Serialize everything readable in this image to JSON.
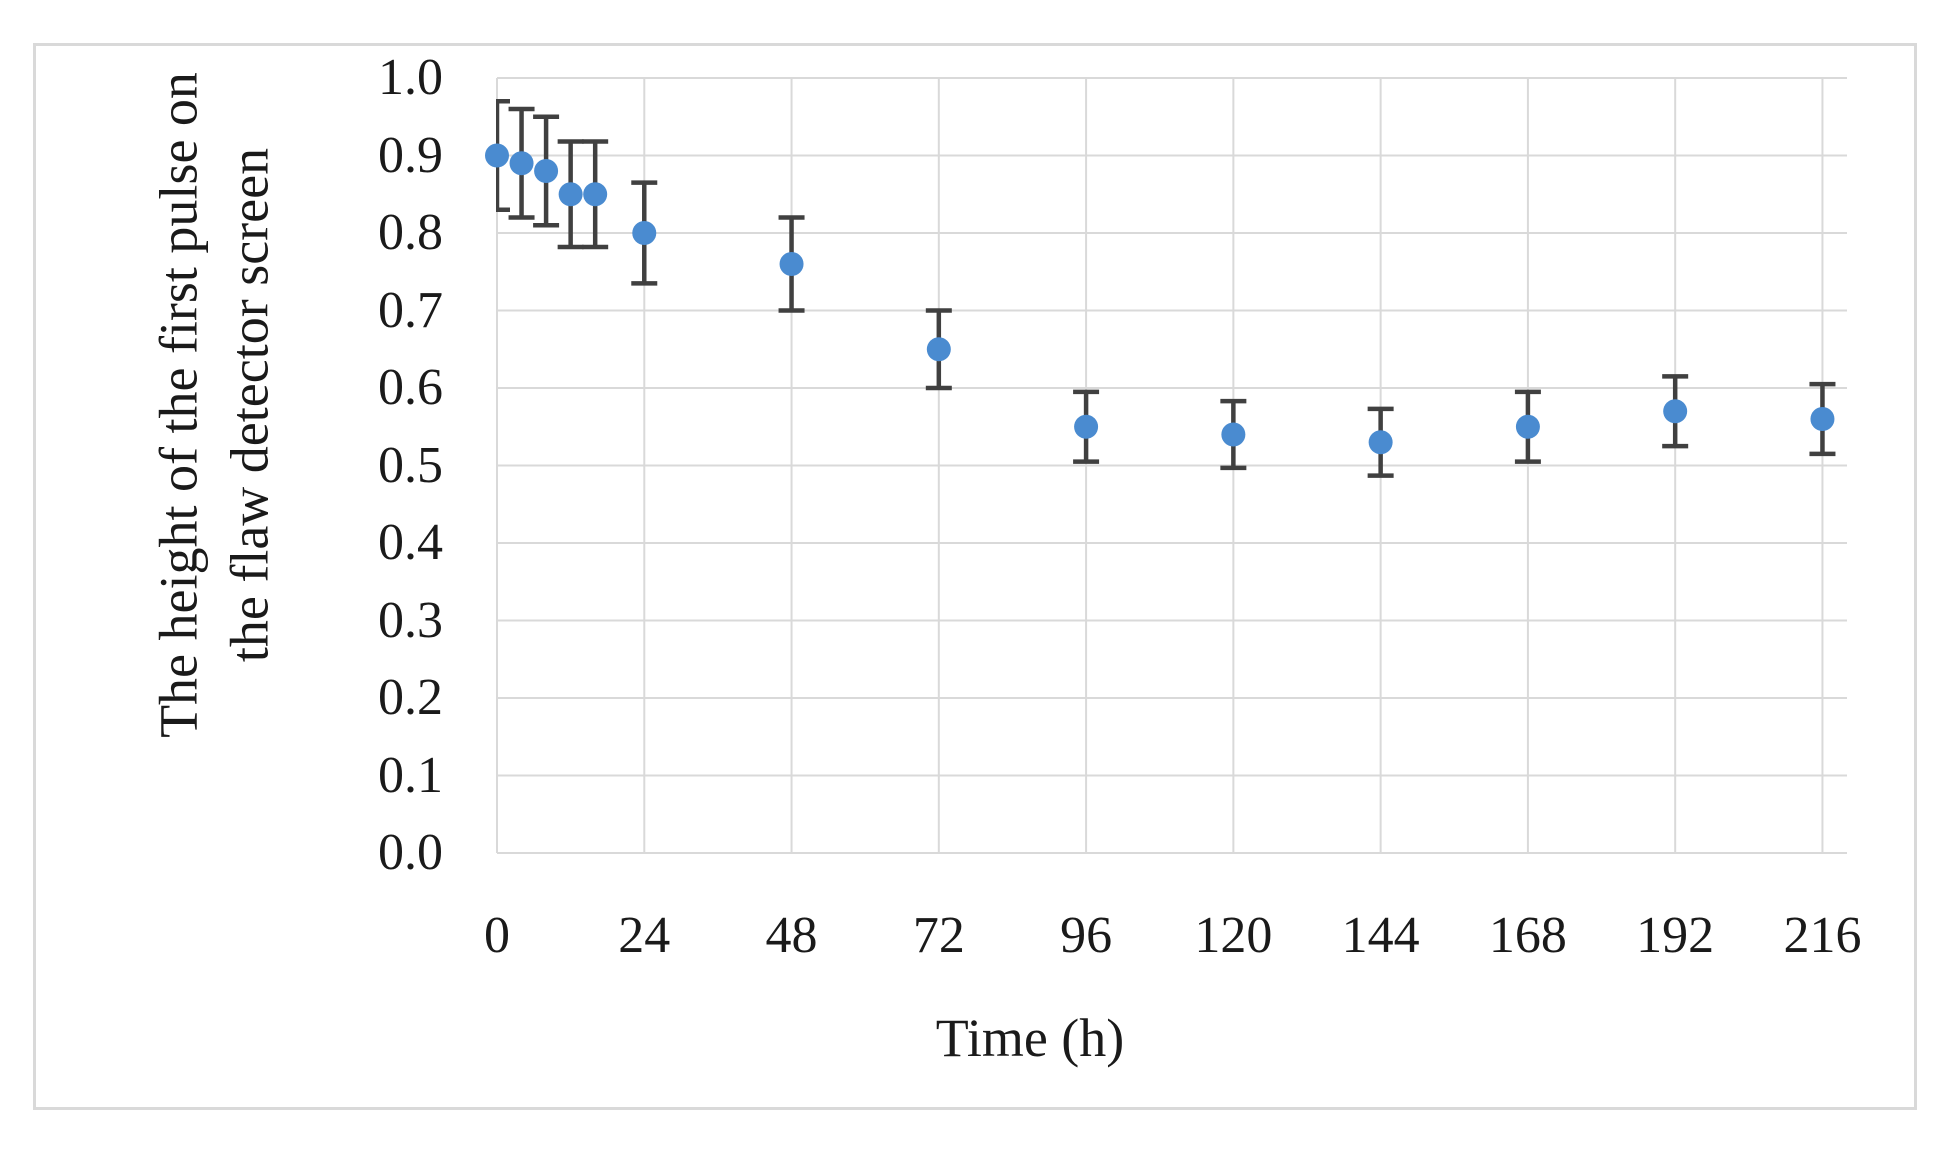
{
  "figure": {
    "background": "#ffffff",
    "border_color": "#d9d9d9"
  },
  "chart_data": {
    "type": "scatter",
    "title": "",
    "xlabel": "Time (h)",
    "ylabel": "The height of the first pulse on\nthe flaw detector screen",
    "x": [
      0,
      4,
      8,
      12,
      16,
      24,
      48,
      72,
      96,
      120,
      144,
      168,
      192,
      216
    ],
    "y": [
      0.9,
      0.89,
      0.88,
      0.85,
      0.85,
      0.8,
      0.76,
      0.65,
      0.55,
      0.54,
      0.53,
      0.55,
      0.57,
      0.56
    ],
    "yerr": [
      0.07,
      0.07,
      0.07,
      0.068,
      0.068,
      0.065,
      0.06,
      0.05,
      0.045,
      0.043,
      0.043,
      0.045,
      0.045,
      0.045
    ],
    "xticks": [
      "0",
      "24",
      "48",
      "72",
      "96",
      "120",
      "144",
      "168",
      "192",
      "216"
    ],
    "xtick_values": [
      0,
      24,
      48,
      72,
      96,
      120,
      144,
      168,
      192,
      216
    ],
    "yticks": [
      "1.0",
      "0.9",
      "0.8",
      "0.7",
      "0.6",
      "0.5",
      "0.4",
      "0.3",
      "0.2",
      "0.1",
      "0.0"
    ],
    "ytick_values": [
      1.0,
      0.9,
      0.8,
      0.7,
      0.6,
      0.5,
      0.4,
      0.3,
      0.2,
      0.1,
      0.0
    ],
    "xlim": [
      0,
      220
    ],
    "ylim": [
      0,
      1
    ],
    "grid": true,
    "legend_position": "none",
    "marker_color": "#4a8bd0",
    "errorbar_color": "#404040",
    "gridline_color": "#d9d9d9",
    "text_color": "#1a1a1a"
  }
}
